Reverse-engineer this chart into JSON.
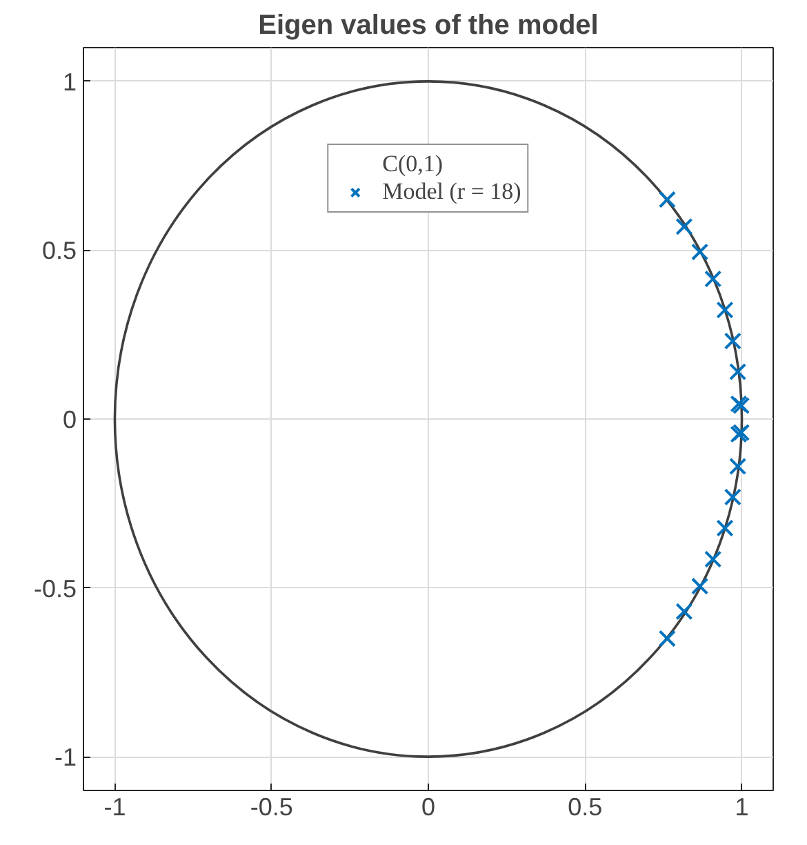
{
  "chart_data": {
    "type": "scatter",
    "title": "Eigen values of the model",
    "xlim": [
      -1.1,
      1.1
    ],
    "ylim": [
      -1.1,
      1.1
    ],
    "xticks": [
      -1,
      -0.5,
      0,
      0.5,
      1
    ],
    "yticks": [
      -1,
      -0.5,
      0,
      0.5,
      1
    ],
    "grid": true,
    "legend": "top",
    "marker": "cross",
    "annotations": [
      "C(0,1)"
    ],
    "series": [
      {
        "name": "Model (r = 18)",
        "color": "#0072bd",
        "x": [
          0.762,
          0.816,
          0.866,
          0.908,
          0.946,
          0.971,
          0.987,
          0.99,
          0.998,
          0.998,
          0.99,
          0.987,
          0.971,
          0.946,
          0.908,
          0.866,
          0.816,
          0.762
        ],
        "values": [
          0.65,
          0.57,
          0.495,
          0.415,
          0.323,
          0.231,
          0.14,
          0.045,
          0.04,
          -0.04,
          -0.045,
          -0.14,
          -0.231,
          -0.323,
          -0.415,
          -0.495,
          -0.57,
          -0.65
        ]
      }
    ]
  }
}
